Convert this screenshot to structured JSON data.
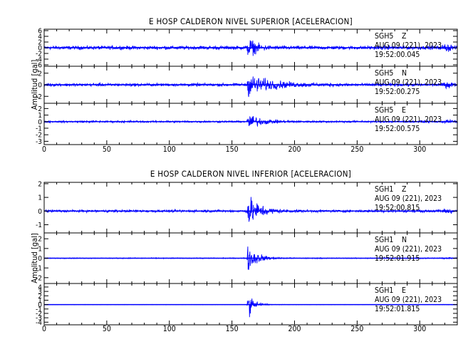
{
  "chart_data": [
    {
      "type": "line",
      "title": "E HOSP CALDERON NIVEL SUPERIOR [ACELERACION]",
      "ylabel": "Amplitud [gal]",
      "xlim": [
        0,
        330
      ],
      "x_ticks": [
        0,
        50,
        100,
        150,
        200,
        250,
        300
      ],
      "event_time": 162,
      "grid": false,
      "series": [
        {
          "name": "SGH5 Z",
          "station": "SGH5",
          "component": "Z",
          "date": "AUG 09 (221), 2023",
          "time": "19:52:00.045",
          "y_ticks": [
            -6,
            -4,
            -2,
            0,
            2,
            4,
            6
          ],
          "ylim": [
            -6.5,
            6.5
          ],
          "noise": 0.9,
          "peak": 6.0,
          "decay": 6
        },
        {
          "name": "SGH5 N",
          "station": "SGH5",
          "component": "N",
          "date": "AUG 09 (221), 2023",
          "time": "19:52:00.275",
          "y_ticks": [
            -2,
            0,
            2
          ],
          "ylim": [
            -3.2,
            3.2
          ],
          "noise": 0.35,
          "peak": 2.6,
          "decay": 18
        },
        {
          "name": "SGH5 E",
          "station": "SGH5",
          "component": "E",
          "date": "AUG 09 (221), 2023",
          "time": "19:52:00.575",
          "y_ticks": [
            -3,
            -2,
            -1,
            0,
            1,
            2
          ],
          "ylim": [
            -3.5,
            2.8
          ],
          "noise": 0.2,
          "peak": 1.8,
          "decay": 10
        }
      ]
    },
    {
      "type": "line",
      "title": "E HOSP CALDERON NIVEL INFERIOR [ACELERACION]",
      "ylabel": "Amplitud [gal]",
      "xlim": [
        0,
        330
      ],
      "x_ticks": [
        0,
        50,
        100,
        150,
        200,
        250,
        300
      ],
      "event_time": 162,
      "grid": false,
      "series": [
        {
          "name": "SGH1 Z",
          "station": "SGH1",
          "component": "Z",
          "date": "AUG 09 (221), 2023",
          "time": "19:52:00.815",
          "y_ticks": [
            -1,
            0,
            1,
            2
          ],
          "ylim": [
            -1.6,
            2.1
          ],
          "noise": 0.12,
          "peak": 1.9,
          "decay": 9
        },
        {
          "name": "SGH1 N",
          "station": "SGH1",
          "component": "N",
          "date": "AUG 09 (221), 2023",
          "time": "19:52:01.915",
          "y_ticks": [
            -2,
            -1,
            0,
            1,
            2
          ],
          "ylim": [
            -2.6,
            2.6
          ],
          "noise": 0.06,
          "peak": 2.5,
          "decay": 7
        },
        {
          "name": "SGH1 E",
          "station": "SGH1",
          "component": "E",
          "date": "AUG 09 (221), 2023",
          "time": "19:52:01.815",
          "y_ticks": [
            -4,
            -3,
            -2,
            -1,
            0,
            1,
            2,
            3,
            4
          ],
          "ylim": [
            -4.6,
            4.8
          ],
          "noise": 0.05,
          "peak": 4.5,
          "decay": 5
        }
      ]
    }
  ],
  "style": {
    "trace_color": "#0000ff",
    "axis_color": "#000000",
    "text_color": "#000000"
  }
}
